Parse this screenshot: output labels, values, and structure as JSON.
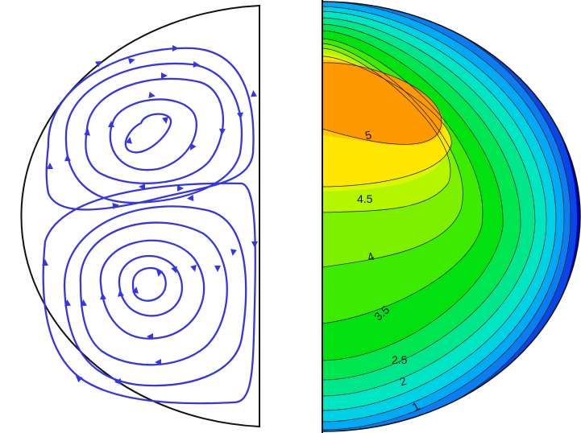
{
  "contour_labels": [
    "5",
    "4.5",
    "4",
    "3.5",
    "2.5",
    "2",
    "1"
  ],
  "colors": {
    "streamline": "#3535e6",
    "outline": "#111111",
    "levels": [
      "#0000b4",
      "#0a46e6",
      "#0a7df0",
      "#00aaf5",
      "#00d2e6",
      "#00e6c3",
      "#00e68c",
      "#00e650",
      "#00e10f",
      "#3ceb00",
      "#7df000",
      "#b4f500",
      "#dcf500",
      "#ffe600",
      "#ffc800",
      "#ff9900"
    ]
  }
}
